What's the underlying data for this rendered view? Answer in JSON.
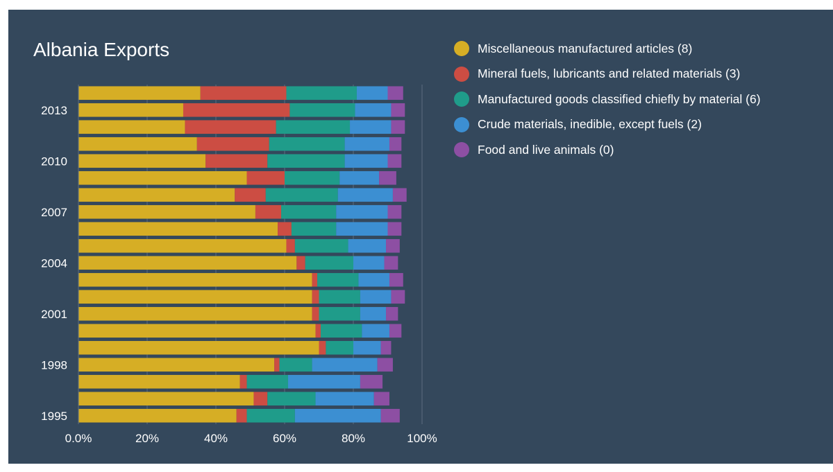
{
  "colors": {
    "background": "#34485c",
    "grid": "#5b6d80",
    "text": "#ffffff"
  },
  "chart_data": {
    "type": "bar",
    "orientation": "horizontal",
    "stacked": "percent",
    "title": "Albania Exports",
    "xlim": [
      0,
      100
    ],
    "xticks": [
      "0.0%",
      "20%",
      "40%",
      "60%",
      "80%",
      "100%"
    ],
    "ytick_labels": [
      "2013",
      "2010",
      "2007",
      "2004",
      "2001",
      "1998",
      "1995"
    ],
    "categories": [
      "1995",
      "1996",
      "1997",
      "1998",
      "1999",
      "2000",
      "2001",
      "2002",
      "2003",
      "2004",
      "2005",
      "2006",
      "2007",
      "2008",
      "2009",
      "2010",
      "2011",
      "2012",
      "2013",
      "2014"
    ],
    "legend_position": "right",
    "grid": true,
    "series": [
      {
        "name": "Miscellaneous manufactured articles (8)",
        "color": "#d6ae25",
        "values": [
          46,
          51,
          47,
          57,
          70,
          69,
          68,
          68,
          68,
          63.5,
          60.5,
          58,
          51.5,
          45.5,
          49,
          37,
          34.5,
          31,
          30.5,
          35.5
        ]
      },
      {
        "name": "Mineral fuels, lubricants and related materials (3)",
        "color": "#cc4d43",
        "values": [
          3,
          4,
          2,
          1.5,
          2,
          1.5,
          2,
          2,
          1.5,
          2.5,
          2.5,
          4,
          7.5,
          9,
          11,
          18,
          21,
          26.5,
          31,
          25
        ]
      },
      {
        "name": "Manufactured goods classified chiefly by material (6)",
        "color": "#1f9c8a",
        "values": [
          14,
          14,
          12,
          9.5,
          8,
          12,
          12,
          12,
          12,
          14,
          15.5,
          13,
          16,
          21,
          16,
          22.5,
          22,
          21.5,
          19,
          20.5
        ]
      },
      {
        "name": "Crude materials, inedible, except fuels (2)",
        "color": "#3c8fd2",
        "values": [
          25,
          17,
          21,
          19,
          8,
          8,
          7.5,
          9,
          9,
          9,
          11,
          15,
          15,
          16,
          11.5,
          12.5,
          13,
          12,
          10.5,
          9
        ]
      },
      {
        "name": "Food and live animals (0)",
        "color": "#8d4fa3",
        "values": [
          5.5,
          4.5,
          6.5,
          4.5,
          3,
          3.5,
          3.5,
          4,
          4,
          4,
          4,
          4,
          4,
          4,
          5,
          4,
          3.5,
          4,
          4,
          4.5
        ]
      }
    ]
  }
}
